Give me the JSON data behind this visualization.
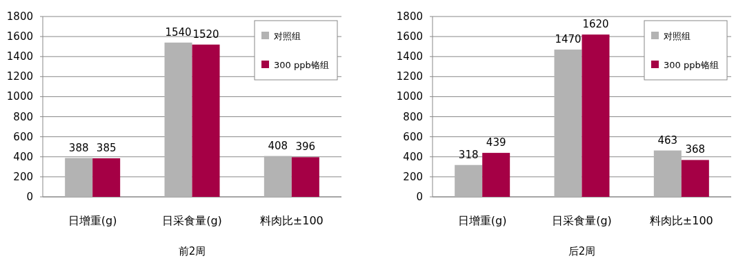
{
  "chart_data": [
    {
      "type": "bar",
      "title": "前2周",
      "categories": [
        "日增重(g)",
        "日采食量(g)",
        "料肉比±100"
      ],
      "series": [
        {
          "name": "对照组",
          "color": "#b3b3b3",
          "values": [
            388,
            1540,
            408
          ]
        },
        {
          "name": "300 ppb铬组",
          "color": "#a50045",
          "values": [
            385,
            1520,
            396
          ]
        }
      ],
      "ylim": [
        0,
        1800
      ],
      "yticks": [
        0,
        200,
        400,
        600,
        800,
        1000,
        1200,
        1400,
        1600,
        1800
      ],
      "grid": "y",
      "legend": "top right",
      "data_labels": true
    },
    {
      "type": "bar",
      "title": "后2周",
      "categories": [
        "日增重(g)",
        "日采食量(g)",
        "料肉比±100"
      ],
      "series": [
        {
          "name": "对照组",
          "color": "#b3b3b3",
          "values": [
            318,
            1470,
            463
          ]
        },
        {
          "name": "300 ppb铬组",
          "color": "#a50045",
          "values": [
            439,
            1620,
            368
          ]
        }
      ],
      "ylim": [
        0,
        1800
      ],
      "yticks": [
        0,
        200,
        400,
        600,
        800,
        1000,
        1200,
        1400,
        1600,
        1800
      ],
      "grid": "y",
      "legend": "top right",
      "data_labels": true
    }
  ]
}
